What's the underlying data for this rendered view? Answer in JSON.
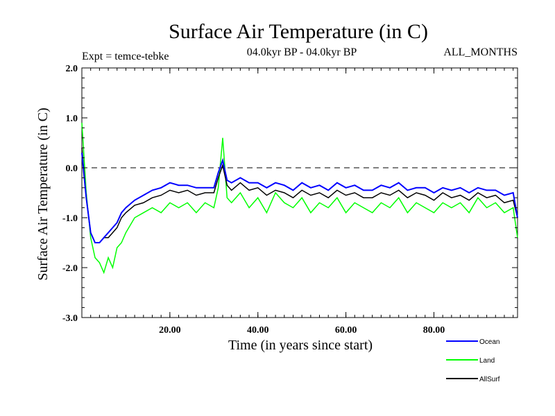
{
  "chart_data": {
    "type": "line",
    "title": "Surface Air Temperature (in C)",
    "subtitle_left": "Expt = temce-tebke",
    "subtitle_center": "04.0kyr BP - 04.0kyr BP",
    "subtitle_right": "ALL_MONTHS",
    "xlabel": "Time (in years since start)",
    "ylabel": "Surface Air Temperature (in C)",
    "xlim": [
      0,
      99
    ],
    "ylim": [
      -3.0,
      2.0
    ],
    "x_ticks": [
      20,
      40,
      60,
      80
    ],
    "x_tick_labels": [
      "20.00",
      "40.00",
      "60.00",
      "80.00"
    ],
    "y_ticks": [
      2.0,
      1.0,
      0.0,
      -1.0,
      -2.0,
      -3.0
    ],
    "y_tick_labels": [
      "2.0",
      "1.0",
      "0.0",
      "-1.0",
      "-2.0",
      "-3.0"
    ],
    "reference_line": 0.0,
    "legend_position": "bottom-right",
    "series": [
      {
        "name": "Land",
        "color": "#00ff00",
        "x": [
          0,
          1,
          2,
          3,
          4,
          5,
          6,
          7,
          8,
          9,
          10,
          12,
          14,
          16,
          18,
          20,
          22,
          24,
          26,
          28,
          30,
          31,
          32,
          33,
          34,
          36,
          38,
          40,
          42,
          44,
          46,
          48,
          50,
          52,
          54,
          56,
          58,
          60,
          62,
          64,
          66,
          68,
          70,
          72,
          74,
          76,
          78,
          80,
          82,
          84,
          86,
          88,
          90,
          92,
          94,
          96,
          98,
          99
        ],
        "values": [
          0.9,
          -0.5,
          -1.4,
          -1.8,
          -1.9,
          -2.1,
          -1.8,
          -2.0,
          -1.6,
          -1.5,
          -1.3,
          -1.0,
          -0.9,
          -0.8,
          -0.9,
          -0.7,
          -0.8,
          -0.7,
          -0.9,
          -0.7,
          -0.8,
          -0.4,
          0.6,
          -0.6,
          -0.7,
          -0.5,
          -0.8,
          -0.6,
          -0.9,
          -0.5,
          -0.7,
          -0.8,
          -0.6,
          -0.9,
          -0.7,
          -0.8,
          -0.6,
          -0.9,
          -0.7,
          -0.8,
          -0.9,
          -0.7,
          -0.8,
          -0.6,
          -0.9,
          -0.7,
          -0.8,
          -0.9,
          -0.7,
          -0.8,
          -0.7,
          -0.9,
          -0.6,
          -0.8,
          -0.7,
          -0.9,
          -0.8,
          -1.4
        ]
      },
      {
        "name": "AllSurf",
        "color": "#000000",
        "x": [
          0,
          1,
          2,
          3,
          4,
          5,
          6,
          7,
          8,
          9,
          10,
          12,
          14,
          16,
          18,
          20,
          22,
          24,
          26,
          28,
          30,
          31,
          32,
          33,
          34,
          36,
          38,
          40,
          42,
          44,
          46,
          48,
          50,
          52,
          54,
          56,
          58,
          60,
          62,
          64,
          66,
          68,
          70,
          72,
          74,
          76,
          78,
          80,
          82,
          84,
          86,
          88,
          90,
          92,
          94,
          96,
          98,
          99
        ],
        "values": [
          0.4,
          -0.6,
          -1.3,
          -1.5,
          -1.5,
          -1.4,
          -1.4,
          -1.3,
          -1.2,
          -1.0,
          -0.9,
          -0.75,
          -0.7,
          -0.6,
          -0.55,
          -0.45,
          -0.5,
          -0.45,
          -0.55,
          -0.5,
          -0.5,
          -0.2,
          0.05,
          -0.35,
          -0.45,
          -0.3,
          -0.45,
          -0.4,
          -0.55,
          -0.45,
          -0.5,
          -0.6,
          -0.45,
          -0.55,
          -0.5,
          -0.6,
          -0.45,
          -0.55,
          -0.5,
          -0.6,
          -0.6,
          -0.5,
          -0.55,
          -0.45,
          -0.6,
          -0.5,
          -0.55,
          -0.65,
          -0.5,
          -0.6,
          -0.55,
          -0.65,
          -0.5,
          -0.6,
          -0.55,
          -0.7,
          -0.65,
          -1.0
        ]
      },
      {
        "name": "Ocean",
        "color": "#0000ff",
        "x": [
          0,
          1,
          2,
          3,
          4,
          5,
          6,
          7,
          8,
          9,
          10,
          12,
          14,
          16,
          18,
          20,
          22,
          24,
          26,
          28,
          30,
          31,
          32,
          33,
          34,
          36,
          38,
          40,
          42,
          44,
          46,
          48,
          50,
          52,
          54,
          56,
          58,
          60,
          62,
          64,
          66,
          68,
          70,
          72,
          74,
          76,
          78,
          80,
          82,
          84,
          86,
          88,
          90,
          92,
          94,
          96,
          98,
          99
        ],
        "values": [
          0.3,
          -0.6,
          -1.3,
          -1.5,
          -1.5,
          -1.4,
          -1.3,
          -1.2,
          -1.1,
          -0.9,
          -0.8,
          -0.65,
          -0.55,
          -0.45,
          -0.4,
          -0.3,
          -0.35,
          -0.35,
          -0.4,
          -0.4,
          -0.4,
          -0.1,
          0.15,
          -0.25,
          -0.3,
          -0.2,
          -0.3,
          -0.3,
          -0.4,
          -0.3,
          -0.35,
          -0.45,
          -0.3,
          -0.4,
          -0.35,
          -0.45,
          -0.3,
          -0.4,
          -0.35,
          -0.45,
          -0.45,
          -0.35,
          -0.4,
          -0.3,
          -0.45,
          -0.4,
          -0.4,
          -0.5,
          -0.4,
          -0.45,
          -0.4,
          -0.5,
          -0.4,
          -0.45,
          -0.45,
          -0.55,
          -0.5,
          -1.0
        ]
      }
    ]
  }
}
